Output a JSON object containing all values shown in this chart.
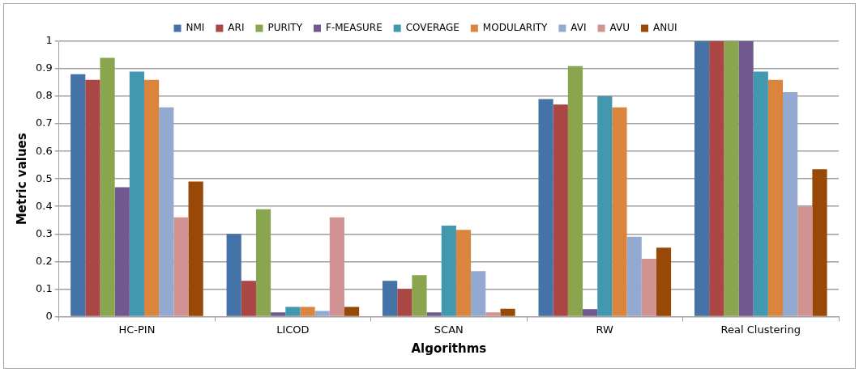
{
  "chart_data": {
    "type": "bar",
    "xlabel": "Algorithms",
    "ylabel": "Metric values",
    "categories": [
      "HC-PIN",
      "LICOD",
      "SCAN",
      "RW",
      "Real Clustering"
    ],
    "ylim": [
      0,
      1
    ],
    "yticks": [
      0,
      0.1,
      0.2,
      0.3,
      0.4,
      0.5,
      0.6,
      0.7,
      0.8,
      0.9,
      1
    ],
    "grid": "y",
    "legend": "top",
    "series": [
      {
        "name": "NMI",
        "color": "#4572a7",
        "values": [
          0.88,
          0.3,
          0.13,
          0.79,
          1
        ]
      },
      {
        "name": "ARI",
        "color": "#aa4643",
        "values": [
          0.86,
          0.13,
          0.1,
          0.77,
          1
        ]
      },
      {
        "name": "PURITY",
        "color": "#89a54e",
        "values": [
          0.94,
          0.39,
          0.15,
          0.91,
          1
        ]
      },
      {
        "name": "F-MEASURE",
        "color": "#71588f",
        "values": [
          0.47,
          0.015,
          0.015,
          0.027,
          1
        ]
      },
      {
        "name": "COVERAGE",
        "color": "#4198af",
        "values": [
          0.89,
          0.035,
          0.33,
          0.8,
          0.89
        ]
      },
      {
        "name": "MODULARITY",
        "color": "#db843d",
        "values": [
          0.86,
          0.035,
          0.315,
          0.76,
          0.86
        ]
      },
      {
        "name": "AVI",
        "color": "#93a9cf",
        "values": [
          0.76,
          0.02,
          0.165,
          0.29,
          0.815
        ]
      },
      {
        "name": "AVU",
        "color": "#d19392",
        "values": [
          0.36,
          0.36,
          0.015,
          0.21,
          0.4
        ]
      },
      {
        "name": "ANUI",
        "color": "#984807",
        "values": [
          0.49,
          0.035,
          0.028,
          0.25,
          0.535
        ]
      }
    ]
  }
}
